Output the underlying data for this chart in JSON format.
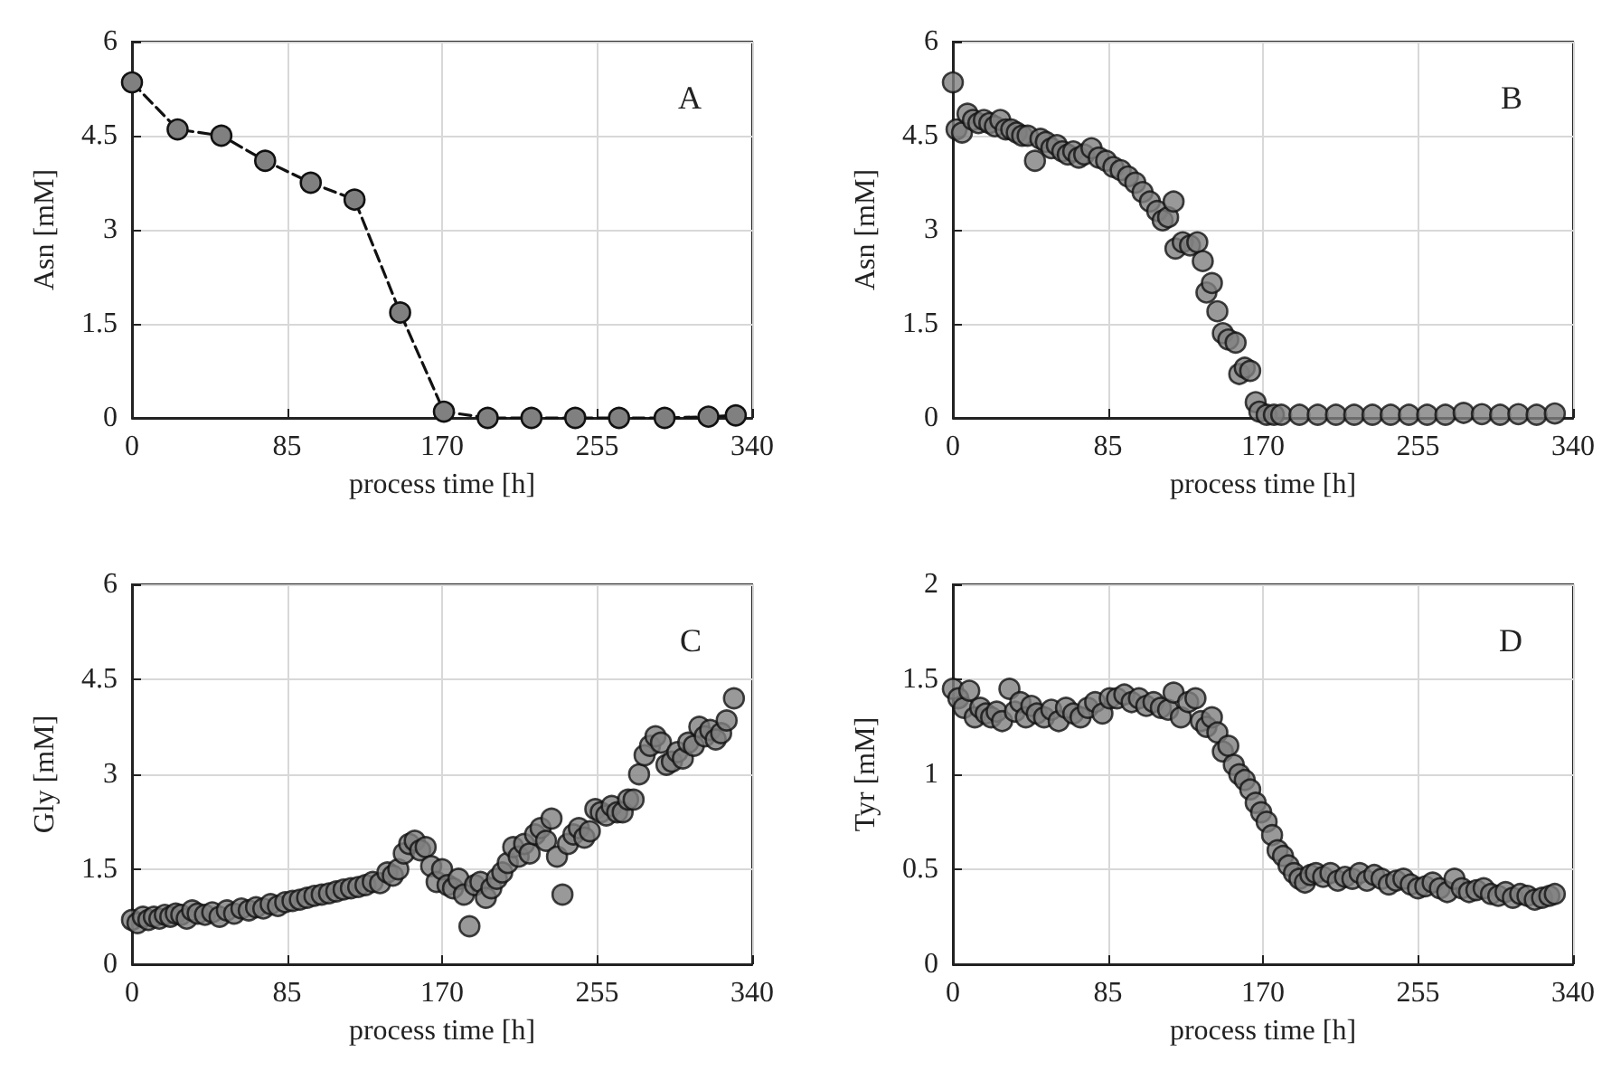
{
  "chart_data": [
    {
      "type": "line",
      "xlabel": "process time [h]",
      "ylabel": "Asn [mM]",
      "annotations": [
        "A"
      ],
      "xlim": [
        0,
        340
      ],
      "xticks": [
        0,
        85,
        170,
        255,
        340
      ],
      "ylim": [
        0,
        6
      ],
      "yticks": [
        0,
        1.5,
        3,
        4.5,
        6
      ],
      "grid": true,
      "marker": "circle",
      "line_style": "dashed",
      "series": [
        {
          "color": "#808080",
          "x": [
            0,
            25,
            49,
            73,
            98,
            122,
            147,
            171,
            195,
            219,
            243,
            267,
            292,
            316,
            331
          ],
          "values": [
            5.35,
            4.6,
            4.5,
            4.1,
            3.75,
            3.48,
            1.68,
            0.1,
            0,
            0,
            0,
            0,
            0,
            0.02,
            0.04
          ]
        }
      ]
    },
    {
      "type": "scatter",
      "xlabel": "process time [h]",
      "ylabel": "Asn [mM]",
      "annotations": [
        "B"
      ],
      "xlim": [
        0,
        340
      ],
      "xticks": [
        0,
        85,
        170,
        255,
        340
      ],
      "ylim": [
        0,
        6
      ],
      "yticks": [
        0,
        1.5,
        3,
        4.5,
        6
      ],
      "grid": true,
      "marker": "circle",
      "series": [
        {
          "color": "#808080",
          "x": [
            0,
            2,
            5,
            8,
            11,
            14,
            17,
            20,
            23,
            26,
            29,
            32,
            35,
            38,
            41,
            45,
            48,
            51,
            54,
            57,
            60,
            63,
            66,
            69,
            72,
            76,
            80,
            84,
            88,
            92,
            96,
            100,
            104,
            108,
            112,
            115,
            118,
            121,
            122,
            126,
            130,
            134,
            137,
            139,
            142,
            145,
            148,
            151,
            155,
            157,
            160,
            163,
            166,
            168,
            172,
            176,
            180,
            190,
            200,
            210,
            220,
            230,
            240,
            250,
            260,
            270,
            280,
            290,
            300,
            310,
            320,
            330
          ],
          "values": [
            5.35,
            4.6,
            4.55,
            4.85,
            4.75,
            4.7,
            4.75,
            4.7,
            4.65,
            4.75,
            4.6,
            4.6,
            4.55,
            4.5,
            4.5,
            4.1,
            4.45,
            4.4,
            4.3,
            4.35,
            4.25,
            4.2,
            4.25,
            4.15,
            4.2,
            4.3,
            4.15,
            4.1,
            4.0,
            3.95,
            3.85,
            3.75,
            3.6,
            3.45,
            3.3,
            3.15,
            3.2,
            3.45,
            2.7,
            2.8,
            2.75,
            2.8,
            2.5,
            2.0,
            2.15,
            1.7,
            1.35,
            1.25,
            1.2,
            0.7,
            0.8,
            0.75,
            0.25,
            0.1,
            0.05,
            0.05,
            0.05,
            0.05,
            0.05,
            0.05,
            0.05,
            0.05,
            0.05,
            0.05,
            0.05,
            0.05,
            0.08,
            0.06,
            0.05,
            0.06,
            0.05,
            0.07
          ]
        }
      ]
    },
    {
      "type": "scatter",
      "xlabel": "process time [h]",
      "ylabel": "Gly [mM]",
      "annotations": [
        "C"
      ],
      "xlim": [
        0,
        340
      ],
      "xticks": [
        0,
        85,
        170,
        255,
        340
      ],
      "ylim": [
        0,
        6
      ],
      "yticks": [
        0,
        1.5,
        3,
        4.5,
        6
      ],
      "grid": true,
      "marker": "circle",
      "series": [
        {
          "color": "#808080",
          "x": [
            0,
            3,
            6,
            9,
            12,
            15,
            18,
            21,
            24,
            27,
            30,
            33,
            36,
            40,
            44,
            48,
            52,
            56,
            60,
            64,
            68,
            72,
            76,
            80,
            84,
            88,
            92,
            96,
            100,
            104,
            108,
            112,
            116,
            120,
            124,
            128,
            132,
            136,
            140,
            143,
            146,
            149,
            152,
            155,
            158,
            161,
            164,
            167,
            170,
            173,
            176,
            179,
            182,
            185,
            188,
            191,
            194,
            197,
            200,
            203,
            206,
            209,
            212,
            215,
            218,
            221,
            224,
            227,
            230,
            233,
            236,
            239,
            242,
            245,
            248,
            251,
            254,
            257,
            260,
            263,
            266,
            269,
            272,
            275,
            278,
            281,
            284,
            287,
            290,
            293,
            296,
            299,
            302,
            305,
            308,
            311,
            314,
            317,
            320,
            323,
            326,
            330
          ],
          "values": [
            0.7,
            0.65,
            0.75,
            0.7,
            0.75,
            0.72,
            0.78,
            0.75,
            0.8,
            0.78,
            0.72,
            0.85,
            0.8,
            0.78,
            0.82,
            0.75,
            0.85,
            0.8,
            0.88,
            0.85,
            0.9,
            0.88,
            0.95,
            0.92,
            0.98,
            1.0,
            1.02,
            1.05,
            1.08,
            1.1,
            1.12,
            1.15,
            1.18,
            1.2,
            1.22,
            1.25,
            1.3,
            1.28,
            1.45,
            1.4,
            1.5,
            1.75,
            1.9,
            1.95,
            1.8,
            1.85,
            1.55,
            1.3,
            1.5,
            1.25,
            1.2,
            1.35,
            1.1,
            0.6,
            1.25,
            1.3,
            1.05,
            1.2,
            1.35,
            1.45,
            1.6,
            1.85,
            1.7,
            1.9,
            1.75,
            2.05,
            2.15,
            1.95,
            2.3,
            1.7,
            1.1,
            1.9,
            2.05,
            2.15,
            2.0,
            2.1,
            2.45,
            2.4,
            2.35,
            2.5,
            2.4,
            2.4,
            2.6,
            2.6,
            3.0,
            3.3,
            3.45,
            3.6,
            3.5,
            3.15,
            3.2,
            3.35,
            3.25,
            3.5,
            3.45,
            3.75,
            3.6,
            3.7,
            3.55,
            3.65,
            3.85,
            4.2
          ]
        }
      ]
    },
    {
      "type": "scatter",
      "xlabel": "process time [h]",
      "ylabel": "Tyr [mM]",
      "annotations": [
        "D"
      ],
      "xlim": [
        0,
        340
      ],
      "xticks": [
        0,
        85,
        170,
        255,
        340
      ],
      "ylim": [
        0,
        2
      ],
      "yticks": [
        0,
        0.5,
        1,
        1.5,
        2
      ],
      "grid": true,
      "marker": "circle",
      "series": [
        {
          "color": "#808080",
          "x": [
            0,
            3,
            6,
            9,
            12,
            15,
            18,
            21,
            24,
            27,
            31,
            34,
            37,
            40,
            43,
            46,
            50,
            54,
            58,
            62,
            66,
            70,
            74,
            78,
            82,
            86,
            90,
            94,
            98,
            102,
            106,
            110,
            114,
            118,
            121,
            125,
            129,
            133,
            136,
            139,
            142,
            145,
            148,
            151,
            154,
            157,
            160,
            163,
            166,
            169,
            172,
            175,
            178,
            181,
            184,
            187,
            190,
            193,
            196,
            199,
            203,
            207,
            211,
            215,
            219,
            223,
            227,
            231,
            235,
            239,
            243,
            247,
            251,
            255,
            259,
            263,
            267,
            271,
            275,
            279,
            283,
            287,
            291,
            295,
            299,
            303,
            307,
            311,
            315,
            319,
            323,
            327,
            330
          ],
          "values": [
            1.45,
            1.4,
            1.35,
            1.44,
            1.3,
            1.35,
            1.32,
            1.3,
            1.33,
            1.28,
            1.45,
            1.33,
            1.38,
            1.3,
            1.36,
            1.32,
            1.3,
            1.34,
            1.28,
            1.35,
            1.32,
            1.3,
            1.35,
            1.38,
            1.32,
            1.4,
            1.4,
            1.42,
            1.38,
            1.4,
            1.36,
            1.38,
            1.35,
            1.34,
            1.43,
            1.3,
            1.38,
            1.4,
            1.28,
            1.25,
            1.3,
            1.22,
            1.12,
            1.15,
            1.05,
            1.0,
            0.97,
            0.92,
            0.85,
            0.8,
            0.75,
            0.68,
            0.6,
            0.57,
            0.52,
            0.48,
            0.45,
            0.43,
            0.47,
            0.48,
            0.46,
            0.48,
            0.44,
            0.46,
            0.45,
            0.48,
            0.44,
            0.47,
            0.45,
            0.42,
            0.44,
            0.45,
            0.42,
            0.4,
            0.41,
            0.43,
            0.4,
            0.38,
            0.45,
            0.4,
            0.38,
            0.39,
            0.4,
            0.37,
            0.36,
            0.38,
            0.35,
            0.37,
            0.36,
            0.34,
            0.35,
            0.36,
            0.37
          ]
        }
      ]
    }
  ]
}
